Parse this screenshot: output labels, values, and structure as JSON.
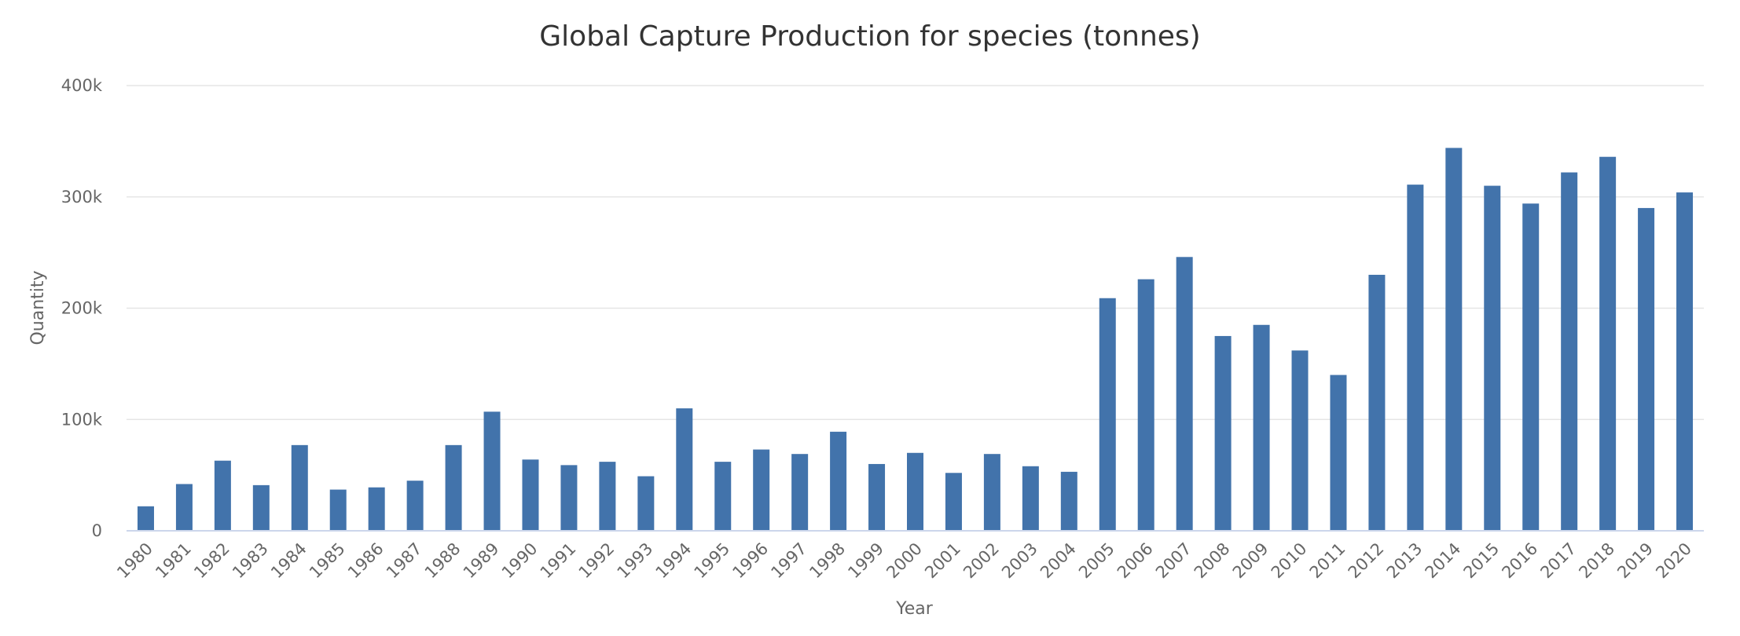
{
  "chart_data": {
    "type": "bar",
    "title": "Global Capture Production for species (tonnes)",
    "xlabel": "Year",
    "ylabel": "Quantity",
    "ylim": [
      0,
      400000
    ],
    "yticks": [
      0,
      100000,
      200000,
      300000,
      400000
    ],
    "ytick_labels": [
      "0",
      "100k",
      "200k",
      "300k",
      "400k"
    ],
    "grid": true,
    "legend": "none",
    "bar_color": "#4273ab",
    "categories": [
      "1980",
      "1981",
      "1982",
      "1983",
      "1984",
      "1985",
      "1986",
      "1987",
      "1988",
      "1989",
      "1990",
      "1991",
      "1992",
      "1993",
      "1994",
      "1995",
      "1996",
      "1997",
      "1998",
      "1999",
      "2000",
      "2001",
      "2002",
      "2003",
      "2004",
      "2005",
      "2006",
      "2007",
      "2008",
      "2009",
      "2010",
      "2011",
      "2012",
      "2013",
      "2014",
      "2015",
      "2016",
      "2017",
      "2018",
      "2019",
      "2020"
    ],
    "values": [
      22000,
      42000,
      63000,
      41000,
      77000,
      37000,
      39000,
      45000,
      77000,
      107000,
      64000,
      59000,
      62000,
      49000,
      110000,
      62000,
      73000,
      69000,
      89000,
      60000,
      70000,
      52000,
      69000,
      58000,
      53000,
      209000,
      226000,
      246000,
      175000,
      185000,
      162000,
      140000,
      230000,
      311000,
      344000,
      310000,
      294000,
      322000,
      336000,
      290000,
      304000
    ]
  }
}
